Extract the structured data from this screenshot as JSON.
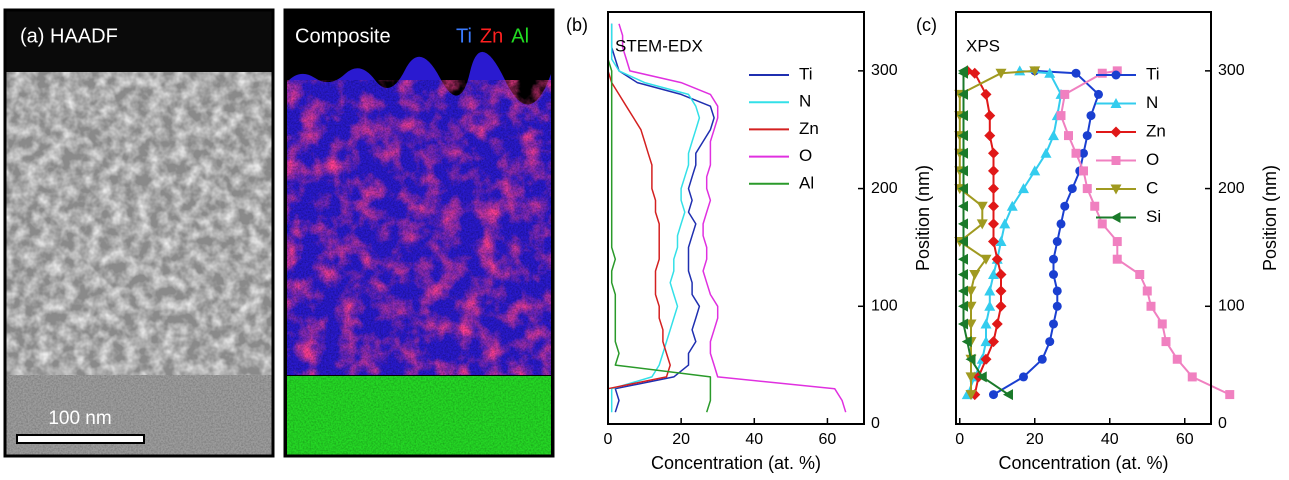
{
  "panel_a": {
    "label": "(a) HAADF",
    "scale_bar": "100 nm",
    "composite_title": "Composite",
    "elements": [
      {
        "name": "Ti",
        "color": "#3b7bff"
      },
      {
        "name": "Zn",
        "color": "#ff2020"
      },
      {
        "name": "Al",
        "color": "#22dd22"
      }
    ]
  },
  "chart_data": [
    {
      "type": "line",
      "panel_label": "(b)",
      "title": "STEM-EDX",
      "xlabel": "Concentration (at. %)",
      "ylabel": "Position (nm)",
      "xlim": [
        0,
        70
      ],
      "xticks": [
        0,
        20,
        40,
        60
      ],
      "ylim": [
        0,
        350
      ],
      "yticks": [
        0,
        100,
        200,
        300
      ],
      "legend": "upper right",
      "y": [
        10,
        20,
        30,
        40,
        50,
        60,
        70,
        80,
        90,
        100,
        110,
        120,
        130,
        140,
        150,
        160,
        170,
        180,
        190,
        200,
        210,
        220,
        230,
        240,
        250,
        260,
        270,
        280,
        290,
        300,
        310,
        320,
        330,
        340
      ],
      "series": [
        {
          "name": "Ti",
          "color": "#1f2fb0",
          "values": [
            2,
            3,
            2,
            18,
            22,
            22,
            24,
            23,
            24,
            25,
            23,
            23,
            22,
            22,
            22,
            23,
            24,
            22,
            23,
            22,
            23,
            24,
            24,
            26,
            28,
            29,
            28,
            20,
            8,
            3,
            2,
            1,
            1,
            1
          ]
        },
        {
          "name": "N",
          "color": "#33e0e8",
          "values": [
            1,
            1,
            1,
            12,
            14,
            15,
            16,
            17,
            18,
            19,
            18,
            17,
            18,
            18,
            19,
            19,
            20,
            21,
            20,
            20,
            21,
            22,
            22,
            23,
            24,
            25,
            24,
            22,
            10,
            3,
            1,
            1,
            1,
            1
          ]
        },
        {
          "name": "Zn",
          "color": "#d42020",
          "values": [
            0,
            0,
            0,
            16,
            17,
            16,
            15,
            15,
            14,
            14,
            13,
            13,
            13,
            14,
            14,
            14,
            14,
            13,
            13,
            12,
            12,
            12,
            11,
            10,
            9,
            7,
            5,
            3,
            1,
            0,
            0,
            0,
            0,
            0
          ]
        },
        {
          "name": "O",
          "color": "#e030e0",
          "values": [
            65,
            64,
            62,
            30,
            29,
            28,
            28,
            29,
            30,
            30,
            28,
            27,
            26,
            27,
            27,
            26,
            26,
            27,
            28,
            27,
            27,
            28,
            28,
            28,
            29,
            30,
            30,
            28,
            20,
            6,
            5,
            4,
            4,
            3
          ]
        },
        {
          "name": "Al",
          "color": "#2a9a2a",
          "values": [
            27,
            28,
            28,
            28,
            2,
            3,
            2,
            2,
            2,
            2,
            2,
            1,
            1,
            2,
            1,
            1,
            1,
            1,
            1,
            1,
            1,
            1,
            1,
            1,
            1,
            1,
            1,
            1,
            1,
            1,
            0,
            0,
            0,
            0
          ]
        }
      ]
    },
    {
      "type": "line",
      "panel_label": "(c)",
      "title": "XPS",
      "xlabel": "Concentration (at. %)",
      "ylabel": "Position (nm)",
      "xlim": [
        -1,
        67
      ],
      "xticks": [
        0,
        20,
        40,
        60
      ],
      "ylim": [
        0,
        350
      ],
      "yticks": [
        0,
        100,
        200,
        300
      ],
      "legend": "upper right",
      "y": [
        25,
        40,
        55,
        70,
        85,
        100,
        113,
        127,
        140,
        155,
        170,
        185,
        200,
        215,
        230,
        245,
        262,
        280,
        298,
        300
      ],
      "series": [
        {
          "name": "Ti",
          "color": "#1a3fd0",
          "marker": "circle",
          "values": [
            9,
            17,
            22,
            24,
            25,
            26,
            26,
            25,
            25,
            26,
            27,
            28,
            30,
            32,
            33,
            34,
            35,
            37,
            31,
            20
          ]
        },
        {
          "name": "N",
          "color": "#33ccee",
          "marker": "triangle-up",
          "values": [
            2,
            4,
            6,
            7,
            7,
            8,
            8,
            9,
            10,
            11,
            12,
            14,
            17,
            20,
            23,
            25,
            26,
            27,
            24,
            16
          ]
        },
        {
          "name": "Zn",
          "color": "#e01818",
          "marker": "diamond",
          "values": [
            4,
            5,
            7,
            9,
            10,
            11,
            11,
            11,
            10,
            9,
            9,
            9,
            9,
            9,
            9,
            8,
            8,
            7,
            4,
            2
          ]
        },
        {
          "name": "O",
          "color": "#f080c0",
          "marker": "square",
          "values": [
            72,
            62,
            58,
            55,
            54,
            51,
            50,
            48,
            42,
            42,
            38,
            36,
            34,
            33,
            31,
            29,
            27,
            28,
            38,
            42
          ]
        },
        {
          "name": "C",
          "color": "#a09a20",
          "marker": "triangle-down",
          "values": [
            3,
            3,
            3,
            3,
            3,
            3,
            3,
            4,
            7,
            0,
            6,
            6,
            0,
            0,
            0,
            0,
            0,
            0,
            11,
            20
          ]
        },
        {
          "name": "Si",
          "color": "#1a7a2a",
          "marker": "triangle-left",
          "values": [
            13,
            6,
            3,
            2,
            1,
            1,
            1,
            1,
            1,
            1,
            1,
            1,
            1,
            1,
            1,
            1,
            1,
            1,
            1,
            1
          ]
        }
      ]
    }
  ]
}
